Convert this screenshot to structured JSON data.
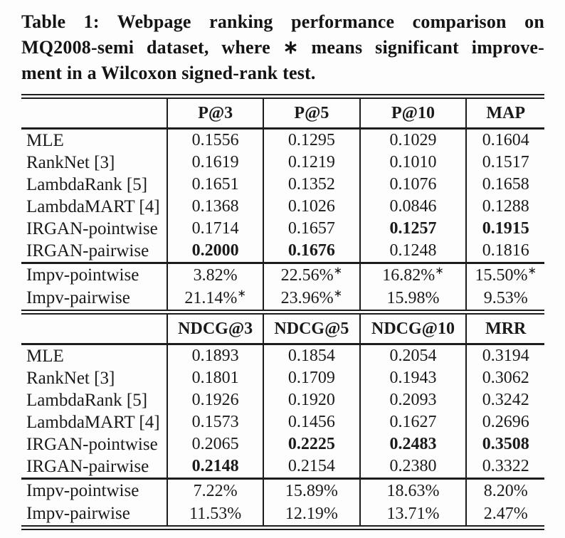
{
  "caption": {
    "lines": [
      "Table 1: Webpage ranking performance comparison on",
      "MQ2008-semi dataset, where ∗ means significant improve-",
      "ment in a Wilcoxon signed-rank test."
    ]
  },
  "table": {
    "star_symbol": "∗",
    "sections": [
      {
        "headers": [
          "",
          "P@3",
          "P@5",
          "P@10",
          "MAP"
        ],
        "model_rows": [
          {
            "label": "MLE",
            "values": [
              {
                "v": "0.1556"
              },
              {
                "v": "0.1295"
              },
              {
                "v": "0.1029"
              },
              {
                "v": "0.1604"
              }
            ]
          },
          {
            "label": "RankNet [3]",
            "values": [
              {
                "v": "0.1619"
              },
              {
                "v": "0.1219"
              },
              {
                "v": "0.1010"
              },
              {
                "v": "0.1517"
              }
            ]
          },
          {
            "label": "LambdaRank [5]",
            "values": [
              {
                "v": "0.1651"
              },
              {
                "v": "0.1352"
              },
              {
                "v": "0.1076"
              },
              {
                "v": "0.1658"
              }
            ]
          },
          {
            "label": "LambdaMART [4]",
            "values": [
              {
                "v": "0.1368"
              },
              {
                "v": "0.1026"
              },
              {
                "v": "0.0846"
              },
              {
                "v": "0.1288"
              }
            ]
          },
          {
            "label": "IRGAN-pointwise",
            "values": [
              {
                "v": "0.1714"
              },
              {
                "v": "0.1657"
              },
              {
                "v": "0.1257",
                "bold": true
              },
              {
                "v": "0.1915",
                "bold": true
              }
            ]
          },
          {
            "label": "IRGAN-pairwise",
            "values": [
              {
                "v": "0.2000",
                "bold": true
              },
              {
                "v": "0.1676",
                "bold": true
              },
              {
                "v": "0.1248"
              },
              {
                "v": "0.1816"
              }
            ]
          }
        ],
        "impv_rows": [
          {
            "label": "Impv-pointwise",
            "values": [
              {
                "v": "3.82%"
              },
              {
                "v": "22.56%",
                "star": true
              },
              {
                "v": "16.82%",
                "star": true
              },
              {
                "v": "15.50%",
                "star": true
              }
            ]
          },
          {
            "label": "Impv-pairwise",
            "values": [
              {
                "v": "21.14%",
                "star": true
              },
              {
                "v": "23.96%",
                "star": true
              },
              {
                "v": "15.98%"
              },
              {
                "v": "9.53%"
              }
            ]
          }
        ]
      },
      {
        "headers": [
          "",
          "NDCG@3",
          "NDCG@5",
          "NDCG@10",
          "MRR"
        ],
        "model_rows": [
          {
            "label": "MLE",
            "values": [
              {
                "v": "0.1893"
              },
              {
                "v": "0.1854"
              },
              {
                "v": "0.2054"
              },
              {
                "v": "0.3194"
              }
            ]
          },
          {
            "label": "RankNet [3]",
            "values": [
              {
                "v": "0.1801"
              },
              {
                "v": "0.1709"
              },
              {
                "v": "0.1943"
              },
              {
                "v": "0.3062"
              }
            ]
          },
          {
            "label": "LambdaRank [5]",
            "values": [
              {
                "v": "0.1926"
              },
              {
                "v": "0.1920"
              },
              {
                "v": "0.2093"
              },
              {
                "v": "0.3242"
              }
            ]
          },
          {
            "label": "LambdaMART [4]",
            "values": [
              {
                "v": "0.1573"
              },
              {
                "v": "0.1456"
              },
              {
                "v": "0.1627"
              },
              {
                "v": "0.2696"
              }
            ]
          },
          {
            "label": "IRGAN-pointwise",
            "values": [
              {
                "v": "0.2065"
              },
              {
                "v": "0.2225",
                "bold": true
              },
              {
                "v": "0.2483",
                "bold": true
              },
              {
                "v": "0.3508",
                "bold": true
              }
            ]
          },
          {
            "label": "IRGAN-pairwise",
            "values": [
              {
                "v": "0.2148",
                "bold": true
              },
              {
                "v": "0.2154"
              },
              {
                "v": "0.2380"
              },
              {
                "v": "0.3322"
              }
            ]
          }
        ],
        "impv_rows": [
          {
            "label": "Impv-pointwise",
            "values": [
              {
                "v": "7.22%"
              },
              {
                "v": "15.89%"
              },
              {
                "v": "18.63%"
              },
              {
                "v": "8.20%"
              }
            ]
          },
          {
            "label": "Impv-pairwise",
            "values": [
              {
                "v": "11.53%"
              },
              {
                "v": "12.19%"
              },
              {
                "v": "13.71%"
              },
              {
                "v": "2.47%"
              }
            ]
          }
        ]
      }
    ]
  }
}
